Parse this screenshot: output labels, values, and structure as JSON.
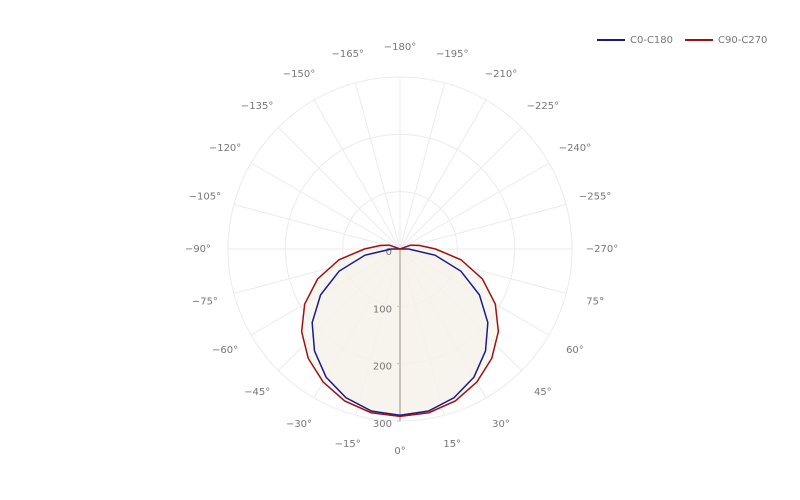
{
  "chart_data": {
    "type": "polar",
    "theta": [
      -120,
      -110,
      -100,
      -90,
      -80,
      -70,
      -60,
      -50,
      -40,
      -30,
      -20,
      -10,
      0,
      10,
      20,
      30,
      40,
      50,
      60,
      70,
      80,
      90,
      100,
      110,
      120
    ],
    "series": [
      {
        "name": "C0-C180",
        "color": "#1a1a8c",
        "values": [
          0,
          0,
          0,
          15,
          62,
          113,
          160,
          200,
          232,
          258,
          276,
          287,
          290,
          287,
          276,
          258,
          232,
          200,
          160,
          113,
          62,
          15,
          0,
          0,
          0
        ]
      },
      {
        "name": "C90-C270",
        "color": "#a01010",
        "values": [
          0,
          20,
          35,
          62,
          108,
          153,
          192,
          224,
          249,
          268,
          282,
          290,
          292,
          290,
          282,
          268,
          249,
          224,
          192,
          153,
          108,
          62,
          35,
          20,
          0
        ]
      }
    ],
    "fill": "#f5f1ea",
    "rlim": [
      0,
      300
    ],
    "rticks": [
      0,
      100,
      200,
      300
    ],
    "thetaticks": [
      {
        "value": 0,
        "label": "0°"
      },
      {
        "value": 15,
        "label": "15°"
      },
      {
        "value": 30,
        "label": "30°"
      },
      {
        "value": 45,
        "label": "45°"
      },
      {
        "value": 60,
        "label": "60°"
      },
      {
        "value": 75,
        "label": "75°"
      },
      {
        "value": -270,
        "label": "−270°"
      },
      {
        "value": -255,
        "label": "−255°"
      },
      {
        "value": -240,
        "label": "−240°"
      },
      {
        "value": -225,
        "label": "−225°"
      },
      {
        "value": -210,
        "label": "−210°"
      },
      {
        "value": -195,
        "label": "−195°"
      },
      {
        "value": -180,
        "label": "−180°"
      },
      {
        "value": -165,
        "label": "−165°"
      },
      {
        "value": -150,
        "label": "−150°"
      },
      {
        "value": -135,
        "label": "−135°"
      },
      {
        "value": -120,
        "label": "−120°"
      },
      {
        "value": -105,
        "label": "−105°"
      },
      {
        "value": -90,
        "label": "−90°"
      },
      {
        "value": -75,
        "label": "−75°"
      },
      {
        "value": -60,
        "label": "−60°"
      },
      {
        "value": -45,
        "label": "−45°"
      },
      {
        "value": -30,
        "label": "−30°"
      },
      {
        "value": -15,
        "label": "−15°"
      }
    ],
    "grid": true,
    "legend": "top-right"
  }
}
